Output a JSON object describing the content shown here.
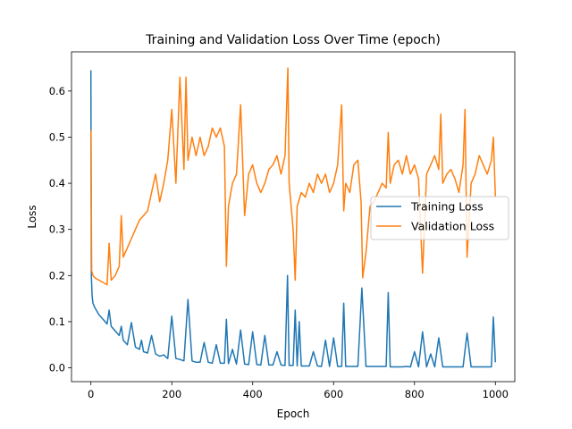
{
  "chart_data": {
    "type": "line",
    "title": "Training and Validation Loss Over Time (epoch)",
    "xlabel": "Epoch",
    "ylabel": "Loss",
    "xlim": [
      -48,
      1048
    ],
    "ylim": [
      -0.03,
      0.685
    ],
    "xticks": [
      0,
      200,
      400,
      600,
      800,
      1000
    ],
    "yticks": [
      0.0,
      0.1,
      0.2,
      0.3,
      0.4,
      0.5,
      0.6
    ],
    "grid": false,
    "legend_position": "center-right",
    "series": [
      {
        "name": "Training Loss",
        "color": "#1f77b4",
        "x": [
          0,
          1,
          3,
          5,
          10,
          20,
          30,
          40,
          45,
          50,
          60,
          70,
          75,
          80,
          90,
          100,
          110,
          120,
          125,
          130,
          140,
          150,
          160,
          170,
          180,
          190,
          200,
          210,
          220,
          230,
          240,
          250,
          260,
          270,
          280,
          290,
          300,
          310,
          320,
          330,
          335,
          340,
          350,
          360,
          370,
          380,
          390,
          400,
          410,
          420,
          430,
          440,
          450,
          460,
          470,
          480,
          486,
          490,
          500,
          505,
          510,
          515,
          520,
          530,
          540,
          550,
          560,
          570,
          580,
          590,
          600,
          610,
          620,
          625,
          630,
          640,
          650,
          660,
          670,
          680,
          690,
          700,
          710,
          720,
          730,
          735,
          740,
          750,
          760,
          770,
          780,
          790,
          800,
          810,
          820,
          830,
          840,
          850,
          860,
          870,
          880,
          890,
          900,
          910,
          920,
          930,
          940,
          950,
          960,
          970,
          980,
          990,
          995,
          1000
        ],
        "values": [
          0.645,
          0.2,
          0.155,
          0.14,
          0.13,
          0.115,
          0.105,
          0.095,
          0.125,
          0.09,
          0.08,
          0.07,
          0.09,
          0.06,
          0.05,
          0.098,
          0.045,
          0.04,
          0.06,
          0.035,
          0.032,
          0.07,
          0.03,
          0.025,
          0.028,
          0.02,
          0.112,
          0.02,
          0.018,
          0.015,
          0.148,
          0.015,
          0.012,
          0.012,
          0.055,
          0.012,
          0.01,
          0.05,
          0.01,
          0.01,
          0.105,
          0.009,
          0.04,
          0.008,
          0.082,
          0.008,
          0.007,
          0.078,
          0.007,
          0.006,
          0.07,
          0.006,
          0.006,
          0.035,
          0.006,
          0.005,
          0.2,
          0.005,
          0.005,
          0.125,
          0.004,
          0.1,
          0.004,
          0.004,
          0.004,
          0.035,
          0.004,
          0.003,
          0.06,
          0.003,
          0.065,
          0.003,
          0.003,
          0.14,
          0.003,
          0.003,
          0.003,
          0.003,
          0.173,
          0.003,
          0.003,
          0.003,
          0.003,
          0.003,
          0.003,
          0.163,
          0.002,
          0.002,
          0.002,
          0.002,
          0.003,
          0.002,
          0.035,
          0.002,
          0.078,
          0.002,
          0.03,
          0.002,
          0.065,
          0.002,
          0.002,
          0.002,
          0.002,
          0.002,
          0.002,
          0.075,
          0.002,
          0.002,
          0.002,
          0.002,
          0.002,
          0.002,
          0.11,
          0.012
        ]
      },
      {
        "name": "Validation Loss",
        "color": "#ff7f0e",
        "x": [
          0,
          2,
          5,
          10,
          20,
          30,
          40,
          45,
          50,
          60,
          70,
          75,
          80,
          90,
          100,
          110,
          120,
          130,
          140,
          150,
          160,
          170,
          180,
          190,
          200,
          210,
          220,
          230,
          235,
          240,
          250,
          260,
          270,
          280,
          290,
          300,
          310,
          320,
          330,
          335,
          340,
          350,
          360,
          370,
          380,
          390,
          400,
          410,
          420,
          430,
          440,
          450,
          460,
          470,
          480,
          487,
          490,
          500,
          505,
          510,
          520,
          530,
          540,
          550,
          560,
          570,
          580,
          590,
          600,
          610,
          620,
          625,
          630,
          640,
          650,
          660,
          668,
          672,
          680,
          690,
          700,
          710,
          720,
          730,
          735,
          740,
          750,
          760,
          770,
          780,
          790,
          800,
          810,
          820,
          830,
          840,
          850,
          860,
          865,
          870,
          880,
          890,
          900,
          910,
          920,
          925,
          930,
          940,
          950,
          960,
          970,
          980,
          990,
          995,
          1000
        ],
        "values": [
          0.515,
          0.21,
          0.2,
          0.195,
          0.19,
          0.185,
          0.18,
          0.27,
          0.19,
          0.2,
          0.22,
          0.33,
          0.24,
          0.26,
          0.28,
          0.3,
          0.32,
          0.33,
          0.34,
          0.38,
          0.42,
          0.36,
          0.4,
          0.45,
          0.56,
          0.4,
          0.63,
          0.43,
          0.63,
          0.45,
          0.5,
          0.46,
          0.5,
          0.46,
          0.48,
          0.52,
          0.5,
          0.52,
          0.48,
          0.22,
          0.35,
          0.4,
          0.42,
          0.57,
          0.33,
          0.42,
          0.44,
          0.4,
          0.38,
          0.4,
          0.43,
          0.44,
          0.46,
          0.42,
          0.46,
          0.65,
          0.4,
          0.3,
          0.19,
          0.35,
          0.38,
          0.37,
          0.4,
          0.38,
          0.42,
          0.4,
          0.42,
          0.38,
          0.4,
          0.44,
          0.57,
          0.34,
          0.4,
          0.38,
          0.44,
          0.45,
          0.36,
          0.195,
          0.25,
          0.35,
          0.36,
          0.38,
          0.4,
          0.39,
          0.51,
          0.4,
          0.44,
          0.45,
          0.42,
          0.46,
          0.42,
          0.44,
          0.41,
          0.205,
          0.42,
          0.44,
          0.46,
          0.43,
          0.55,
          0.4,
          0.42,
          0.43,
          0.41,
          0.38,
          0.44,
          0.56,
          0.24,
          0.4,
          0.42,
          0.46,
          0.44,
          0.42,
          0.45,
          0.5,
          0.37
        ]
      }
    ]
  }
}
